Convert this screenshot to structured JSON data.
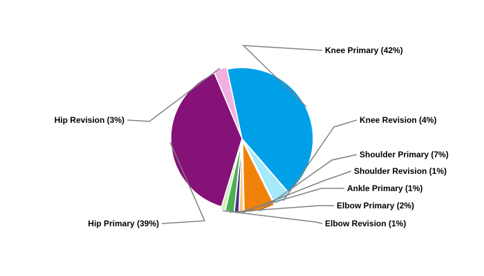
{
  "chart_data": {
    "type": "pie",
    "title": "",
    "slices": [
      {
        "name": "Knee Primary",
        "value": 42,
        "label": "Knee Primary (42%)",
        "color": "#00A0E9"
      },
      {
        "name": "Knee Revision",
        "value": 4,
        "label": "Knee Revision (4%)",
        "color": "#A6E9FA"
      },
      {
        "name": "Shoulder Primary",
        "value": 7,
        "label": "Shoulder Primary (7%)",
        "color": "#F0820A"
      },
      {
        "name": "Shoulder Revision",
        "value": 1,
        "label": "Shoulder Revision (1%)",
        "color": "#F9C87F"
      },
      {
        "name": "Ankle Primary",
        "value": 1,
        "label": "Ankle Primary (1%)",
        "color": "#4E2A84"
      },
      {
        "name": "Elbow Primary",
        "value": 2,
        "label": "Elbow Primary (2%)",
        "color": "#4CAF50"
      },
      {
        "name": "Elbow Revision",
        "value": 1,
        "label": "Elbow Revision (1%)",
        "color": "#C8F0B4"
      },
      {
        "name": "Hip Primary",
        "value": 39,
        "label": "Hip Primary (39%)",
        "color": "#861177"
      },
      {
        "name": "Hip Revision",
        "value": 3,
        "label": "Hip Revision (3%)",
        "color": "#F2B0E0"
      }
    ]
  }
}
